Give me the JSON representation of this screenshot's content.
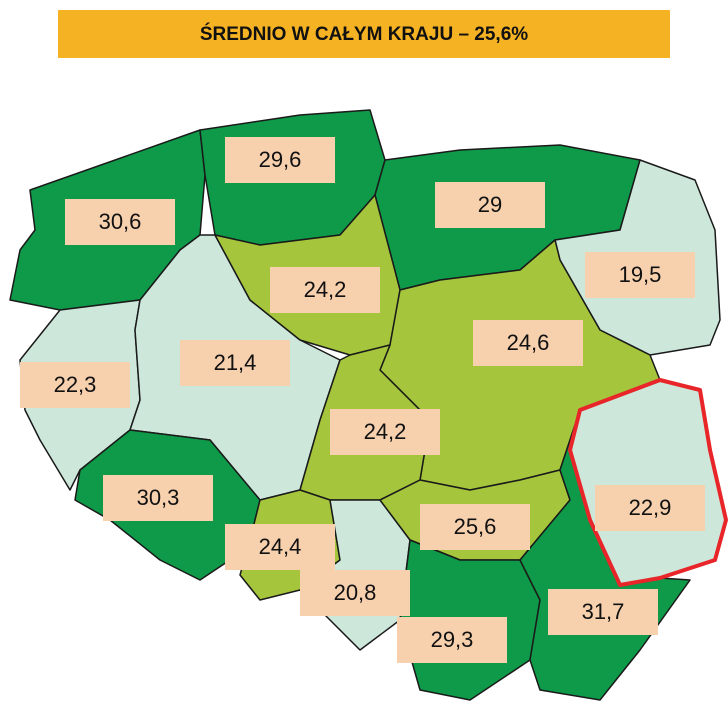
{
  "title": "ŚREDNIO W CAŁYM KRAJU – 25,6%",
  "title_color": "#f5b324",
  "label_box_color": "#f7d0ae",
  "regions": [
    {
      "label": "30,6",
      "color": "#0e9a48"
    },
    {
      "label": "29,6",
      "color": "#0e9a48"
    },
    {
      "label": "29",
      "color": "#0e9a48"
    },
    {
      "label": "19,5",
      "color": "#cde8da"
    },
    {
      "label": "22,3",
      "color": "#cde8da"
    },
    {
      "label": "21,4",
      "color": "#cde8da"
    },
    {
      "label": "24,2",
      "color": "#a5c63c"
    },
    {
      "label": "24,6",
      "color": "#a5c63c"
    },
    {
      "label": "24,2",
      "color": "#a5c63c"
    },
    {
      "label": "22,9",
      "color": "#cde8da",
      "outline": "#e8262a"
    },
    {
      "label": "30,3",
      "color": "#0e9a48"
    },
    {
      "label": "24,4",
      "color": "#a5c63c"
    },
    {
      "label": "20,8",
      "color": "#cde8da"
    },
    {
      "label": "25,6",
      "color": "#a5c63c"
    },
    {
      "label": "29,3",
      "color": "#0e9a48"
    },
    {
      "label": "31,7",
      "color": "#0e9a48"
    }
  ]
}
